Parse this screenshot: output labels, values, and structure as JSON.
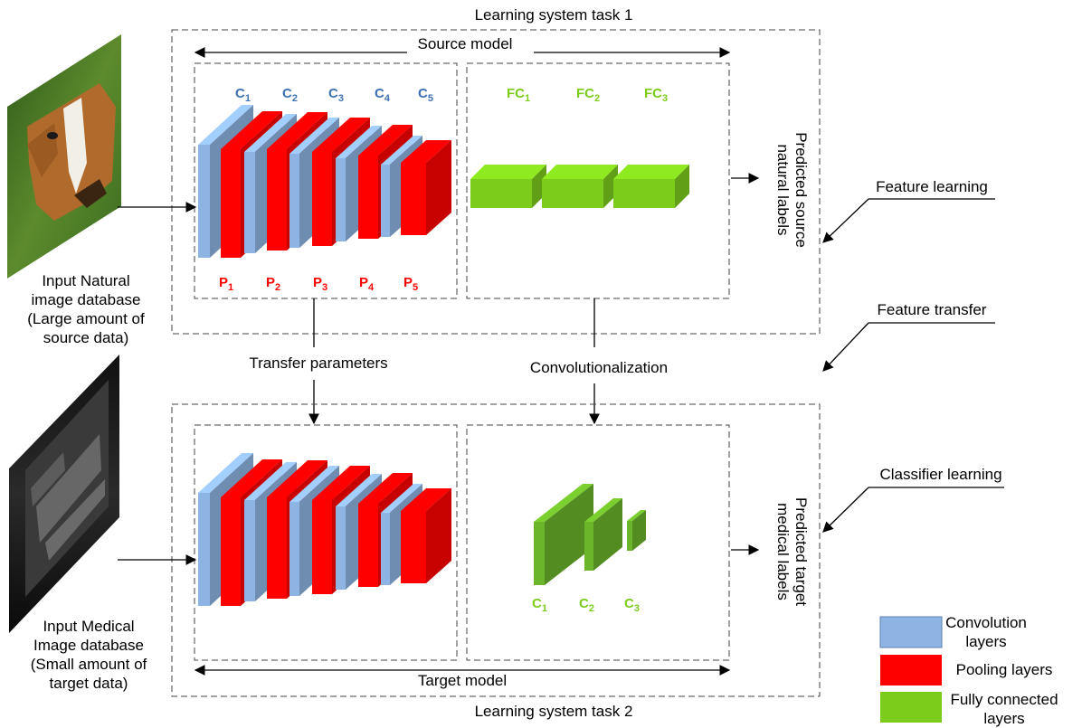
{
  "colors": {
    "conv": "#8eb4e3",
    "pool": "#ff0000",
    "fc": "#7ccc1c",
    "conv_label": "#3c72b4",
    "pool_label": "#ff0000",
    "fc_label": "#7ccc1c"
  },
  "task1": {
    "title": "Learning system task 1"
  },
  "task2": {
    "title": "Learning system task 2"
  },
  "source_model": {
    "label": "Source model"
  },
  "target_model": {
    "label": "Target model"
  },
  "conv_labels": [
    {
      "main": "C",
      "sub": "1"
    },
    {
      "main": "C",
      "sub": "2"
    },
    {
      "main": "C",
      "sub": "3"
    },
    {
      "main": "C",
      "sub": "4"
    },
    {
      "main": "C",
      "sub": "5"
    }
  ],
  "pool_labels": [
    {
      "main": "P",
      "sub": "1"
    },
    {
      "main": "P",
      "sub": "2"
    },
    {
      "main": "P",
      "sub": "3"
    },
    {
      "main": "P",
      "sub": "4"
    },
    {
      "main": "P",
      "sub": "5"
    }
  ],
  "fc_labels": [
    {
      "main": "FC",
      "sub": "1"
    },
    {
      "main": "FC",
      "sub": "2"
    },
    {
      "main": "FC",
      "sub": "3"
    }
  ],
  "target_conv_labels": [
    {
      "main": "C",
      "sub": "1"
    },
    {
      "main": "C",
      "sub": "2"
    },
    {
      "main": "C",
      "sub": "3"
    }
  ],
  "input_natural": {
    "lines": [
      "Input Natural",
      "image database",
      "(Large amount of",
      "source data)"
    ],
    "picture": "horse-photo"
  },
  "input_medical": {
    "lines": [
      "Input Medical",
      "Image database",
      "(Small amount of",
      "target data)"
    ],
    "picture": "ultrasound-image"
  },
  "output_source": {
    "lines": [
      "Predicted source",
      "natural labels"
    ]
  },
  "output_target": {
    "lines": [
      "Predicted target",
      "medical labels"
    ]
  },
  "transfer_parameters": "Transfer parameters",
  "convolutionalization": "Convolutionalization",
  "side_labels": {
    "feature_learning": "Feature learning",
    "feature_transfer": "Feature transfer",
    "classifier_learning": "Classifier learning"
  },
  "legend": [
    {
      "lines": [
        "Convolution",
        "layers"
      ],
      "color": "#8eb4e3"
    },
    {
      "lines": [
        "Pooling layers"
      ],
      "color": "#ff0000"
    },
    {
      "lines": [
        "Fully connected",
        "layers"
      ],
      "color": "#7ccc1c"
    }
  ]
}
